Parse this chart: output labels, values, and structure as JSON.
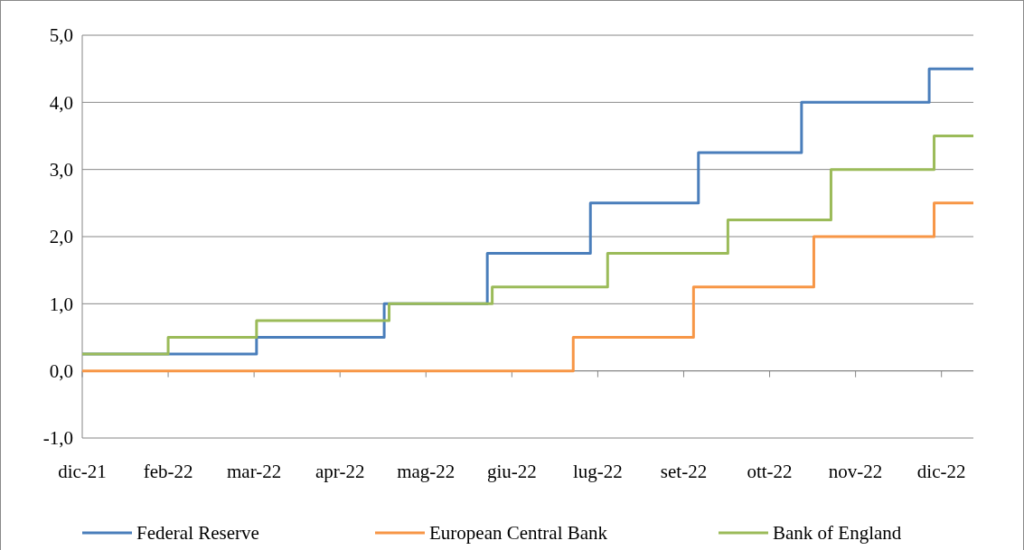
{
  "chart_data": {
    "type": "step",
    "xlim": [
      "2021-12-31",
      "2022-12-29"
    ],
    "xticks": [
      {
        "value": "2021-12-31",
        "label": "dic-21"
      },
      {
        "value": "2022-02-04",
        "label": "feb-22"
      },
      {
        "value": "2022-03-11",
        "label": "mar-22"
      },
      {
        "value": "2022-04-15",
        "label": "apr-22"
      },
      {
        "value": "2022-05-20",
        "label": "mag-22"
      },
      {
        "value": "2022-06-24",
        "label": "giu-22"
      },
      {
        "value": "2022-07-29",
        "label": "lug-22"
      },
      {
        "value": "2022-09-02",
        "label": "set-22"
      },
      {
        "value": "2022-10-07",
        "label": "ott-22"
      },
      {
        "value": "2022-11-11",
        "label": "nov-22"
      },
      {
        "value": "2022-12-16",
        "label": "dic-22"
      }
    ],
    "ylim": [
      -1,
      5
    ],
    "yticks": [
      {
        "value": -1,
        "label": "-1,0"
      },
      {
        "value": 0,
        "label": "0,0"
      },
      {
        "value": 1,
        "label": "1,0"
      },
      {
        "value": 2,
        "label": "2,0"
      },
      {
        "value": 3,
        "label": "3,0"
      },
      {
        "value": 4,
        "label": "4,0"
      },
      {
        "value": 5,
        "label": "5,0"
      }
    ],
    "grid": "y",
    "legend": "bottom",
    "line_style": "solid",
    "series": [
      {
        "name": "Federal Reserve",
        "color": "#4a7ebb",
        "x": [
          "2021-12-31",
          "2022-03-12",
          "2022-05-03",
          "2022-06-14",
          "2022-07-26",
          "2022-09-08",
          "2022-10-20",
          "2022-12-11",
          "2022-12-29"
        ],
        "values": [
          0.25,
          0.5,
          1.0,
          1.75,
          2.5,
          3.25,
          4.0,
          4.5,
          4.5
        ]
      },
      {
        "name": "European Central Bank",
        "color": "#f79646",
        "x": [
          "2021-12-31",
          "2022-07-19",
          "2022-09-06",
          "2022-10-25",
          "2022-12-13",
          "2022-12-29"
        ],
        "values": [
          0,
          0.5,
          1.25,
          2.0,
          2.5,
          2.5
        ]
      },
      {
        "name": "Bank of England",
        "color": "#9bbb59",
        "x": [
          "2021-12-31",
          "2022-02-04",
          "2022-03-12",
          "2022-05-05",
          "2022-06-16",
          "2022-08-02",
          "2022-09-20",
          "2022-11-01",
          "2022-12-13",
          "2022-12-29"
        ],
        "values": [
          0.25,
          0.5,
          0.75,
          1.0,
          1.25,
          1.75,
          2.25,
          3.0,
          3.5,
          3.5
        ]
      }
    ]
  }
}
